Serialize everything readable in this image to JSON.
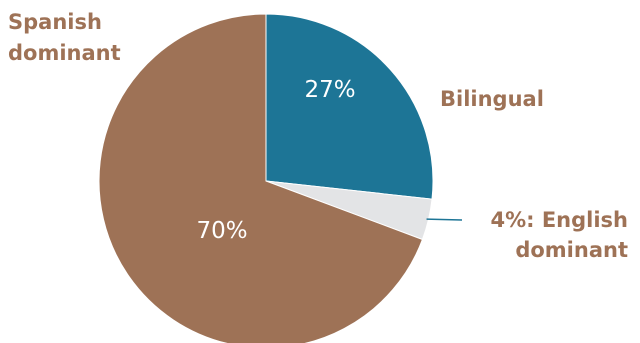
{
  "chart_data": {
    "type": "pie",
    "title": "",
    "slices": [
      {
        "name": "Bilingual",
        "value": 27,
        "value_label": "27%",
        "label_lines": [
          "Bilingual"
        ],
        "color": "#1d7596"
      },
      {
        "name": "English dominant",
        "value": 4,
        "value_label": "",
        "label_lines": [
          "4%: English",
          "dominant"
        ],
        "color": "#e3e4e6"
      },
      {
        "name": "Spanish dominant",
        "value": 70,
        "value_label": "70%",
        "label_lines": [
          "Spanish",
          "dominant"
        ],
        "color": "#9e7256"
      }
    ],
    "label_color": "#9e7256",
    "leader_color": "#1d7596"
  }
}
